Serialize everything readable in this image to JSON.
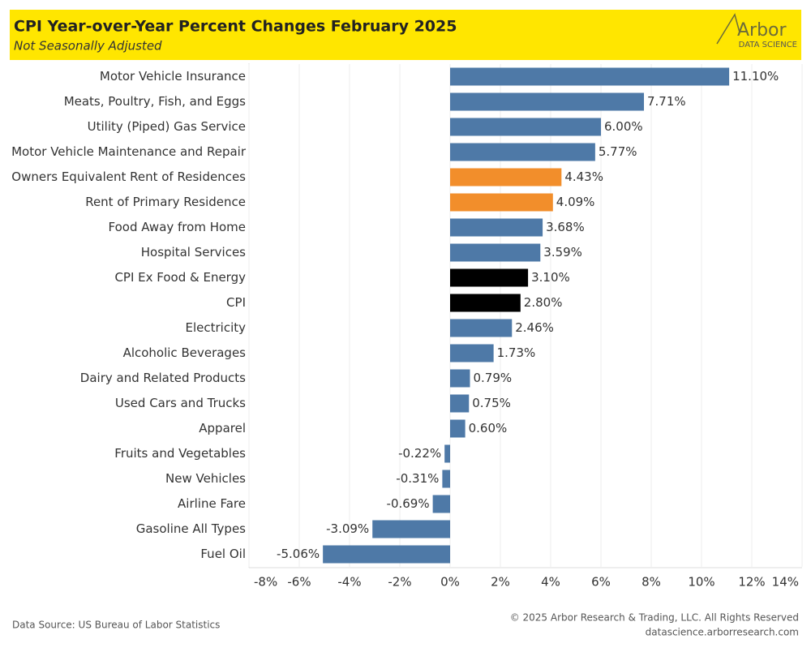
{
  "header": {
    "title": "CPI Year-over-Year Percent Changes February 2025",
    "subtitle": "Not Seasonally Adjusted",
    "logo_name": "Arbor",
    "logo_sub": "DATA SCIENCE"
  },
  "chart_data": {
    "type": "bar",
    "orientation": "horizontal",
    "categories": [
      "Motor Vehicle Insurance",
      "Meats, Poultry, Fish, and Eggs",
      "Utility (Piped) Gas Service",
      "Motor Vehicle Maintenance and Repair",
      "Owners Equivalent Rent of Residences",
      "Rent of Primary Residence",
      "Food Away from Home",
      "Hospital Services",
      "CPI Ex Food & Energy",
      "CPI",
      "Electricity",
      "Alcoholic Beverages",
      "Dairy and Related Products",
      "Used Cars and Trucks",
      "Apparel",
      "Fruits and Vegetables",
      "New Vehicles",
      "Airline Fare",
      "Gasoline All Types",
      "Fuel Oil"
    ],
    "values": [
      11.1,
      7.71,
      6.0,
      5.77,
      4.43,
      4.09,
      3.68,
      3.59,
      3.1,
      2.8,
      2.46,
      1.73,
      0.79,
      0.75,
      0.6,
      -0.22,
      -0.31,
      -0.69,
      -3.09,
      -5.06
    ],
    "value_labels": [
      "11.10%",
      "7.71%",
      "6.00%",
      "5.77%",
      "4.43%",
      "4.09%",
      "3.68%",
      "3.59%",
      "3.10%",
      "2.80%",
      "2.46%",
      "1.73%",
      "0.79%",
      "0.75%",
      "0.60%",
      "-0.22%",
      "-0.31%",
      "-0.69%",
      "-3.09%",
      "-5.06%"
    ],
    "colors": [
      "#4e79a7",
      "#4e79a7",
      "#4e79a7",
      "#4e79a7",
      "#f28e2b",
      "#f28e2b",
      "#4e79a7",
      "#4e79a7",
      "#000000",
      "#000000",
      "#4e79a7",
      "#4e79a7",
      "#4e79a7",
      "#4e79a7",
      "#4e79a7",
      "#4e79a7",
      "#4e79a7",
      "#4e79a7",
      "#4e79a7",
      "#4e79a7"
    ],
    "xlim": [
      -8,
      14
    ],
    "xticks": [
      {
        "value": -8,
        "label": "-8%"
      },
      {
        "value": -6,
        "label": "-6%"
      },
      {
        "value": -4,
        "label": "-4%"
      },
      {
        "value": -2,
        "label": "-2%"
      },
      {
        "value": 0,
        "label": "0%"
      },
      {
        "value": 2,
        "label": "2%"
      },
      {
        "value": 4,
        "label": "4%"
      },
      {
        "value": 6,
        "label": "6%"
      },
      {
        "value": 8,
        "label": "8%"
      },
      {
        "value": 10,
        "label": "10%"
      },
      {
        "value": 12,
        "label": "12%"
      },
      {
        "value": 14,
        "label": "14%"
      }
    ],
    "grid": true
  },
  "footer": {
    "source": "Data Source: US Bureau of Labor Statistics",
    "copyright": "© 2025 Arbor Research & Trading, LLC. All Rights Reserved",
    "url": "datascience.arborresearch.com"
  }
}
